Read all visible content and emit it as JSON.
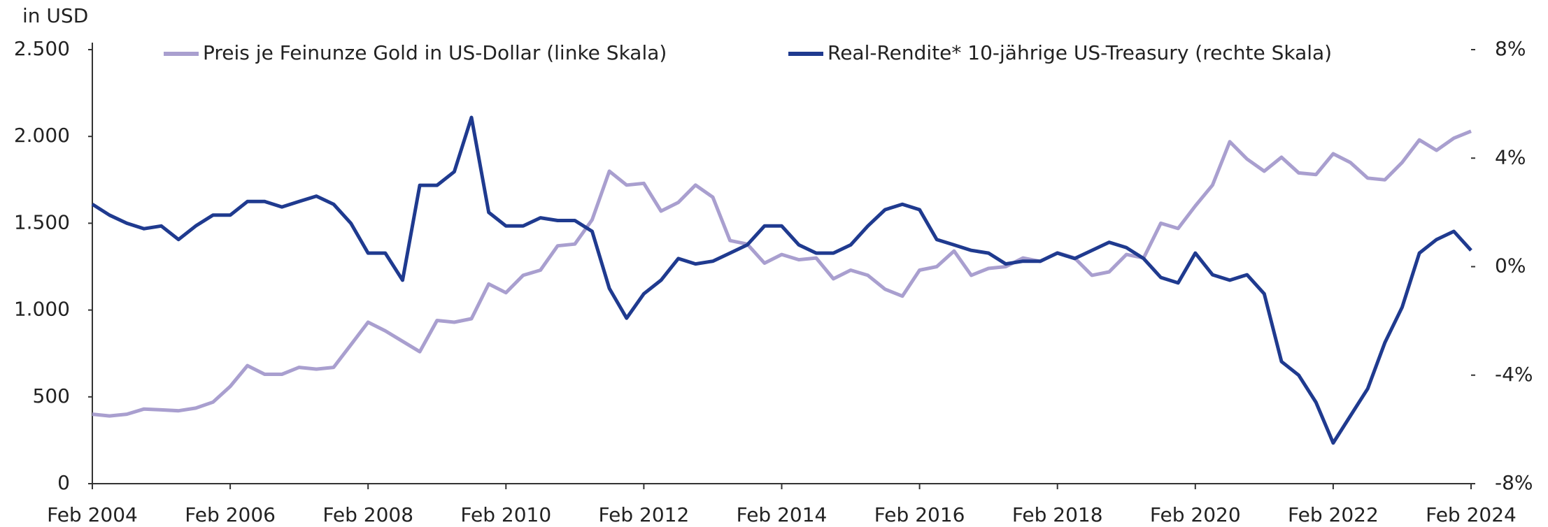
{
  "chart_data": {
    "type": "line",
    "y_axis_label": "in USD",
    "x": [
      "2004-02",
      "2004-05",
      "2004-08",
      "2004-11",
      "2005-02",
      "2005-05",
      "2005-08",
      "2005-11",
      "2006-02",
      "2006-05",
      "2006-08",
      "2006-11",
      "2007-02",
      "2007-05",
      "2007-08",
      "2007-11",
      "2008-02",
      "2008-05",
      "2008-08",
      "2008-11",
      "2009-02",
      "2009-05",
      "2009-08",
      "2009-11",
      "2010-02",
      "2010-05",
      "2010-08",
      "2010-11",
      "2011-02",
      "2011-05",
      "2011-08",
      "2011-11",
      "2012-02",
      "2012-05",
      "2012-08",
      "2012-11",
      "2013-02",
      "2013-05",
      "2013-08",
      "2013-11",
      "2014-02",
      "2014-05",
      "2014-08",
      "2014-11",
      "2015-02",
      "2015-05",
      "2015-08",
      "2015-11",
      "2016-02",
      "2016-05",
      "2016-08",
      "2016-11",
      "2017-02",
      "2017-05",
      "2017-08",
      "2017-11",
      "2018-02",
      "2018-05",
      "2018-08",
      "2018-11",
      "2019-02",
      "2019-05",
      "2019-08",
      "2019-11",
      "2020-02",
      "2020-05",
      "2020-08",
      "2020-11",
      "2021-02",
      "2021-05",
      "2021-08",
      "2021-11",
      "2022-02",
      "2022-05",
      "2022-08",
      "2022-11",
      "2023-02",
      "2023-05",
      "2023-08",
      "2023-11",
      "2024-02"
    ],
    "series": [
      {
        "name": "Preis je Feinunze Gold in US-Dollar (linke Skala)",
        "color": "#a99fcf",
        "axis": "y",
        "values": [
          400,
          390,
          400,
          430,
          425,
          420,
          435,
          470,
          560,
          680,
          630,
          630,
          670,
          660,
          670,
          800,
          930,
          880,
          820,
          760,
          940,
          930,
          950,
          1150,
          1100,
          1200,
          1230,
          1370,
          1380,
          1520,
          1800,
          1720,
          1730,
          1570,
          1620,
          1720,
          1650,
          1400,
          1380,
          1270,
          1320,
          1290,
          1300,
          1180,
          1230,
          1200,
          1120,
          1080,
          1230,
          1250,
          1340,
          1200,
          1240,
          1250,
          1300,
          1280,
          1330,
          1300,
          1200,
          1220,
          1320,
          1300,
          1500,
          1470,
          1600,
          1720,
          1970,
          1870,
          1800,
          1880,
          1790,
          1780,
          1900,
          1850,
          1760,
          1750,
          1850,
          1980,
          1920,
          1990,
          2030
        ]
      },
      {
        "name": "Real-Rendite* 10-jährige US-Treasury (rechte Skala)",
        "color": "#1f3a8f",
        "axis": "y2",
        "values": [
          2.3,
          1.9,
          1.6,
          1.4,
          1.5,
          1.0,
          1.5,
          1.9,
          1.9,
          2.4,
          2.4,
          2.2,
          2.4,
          2.6,
          2.3,
          1.6,
          0.5,
          0.5,
          -0.5,
          3.0,
          3.0,
          3.5,
          5.5,
          2.0,
          1.5,
          1.5,
          1.8,
          1.7,
          1.7,
          1.3,
          -0.8,
          -1.9,
          -1.0,
          -0.5,
          0.3,
          0.1,
          0.2,
          0.5,
          0.8,
          1.5,
          1.5,
          0.8,
          0.5,
          0.5,
          0.8,
          1.5,
          2.1,
          2.3,
          2.1,
          1.0,
          0.8,
          0.6,
          0.5,
          0.1,
          0.2,
          0.2,
          0.5,
          0.3,
          0.6,
          0.9,
          0.7,
          0.3,
          -0.4,
          -0.6,
          0.5,
          -0.3,
          -0.5,
          -0.3,
          -1.0,
          -3.5,
          -4.0,
          -5.0,
          -6.5,
          -5.5,
          -4.5,
          -2.8,
          -1.5,
          0.5,
          1.0,
          1.3,
          0.6
        ]
      }
    ],
    "xlim": [
      "2004-02",
      "2024-02"
    ],
    "xticks": [
      {
        "value": "2004-02",
        "label": "Feb 2004"
      },
      {
        "value": "2006-02",
        "label": "Feb 2006"
      },
      {
        "value": "2008-02",
        "label": "Feb 2008"
      },
      {
        "value": "2010-02",
        "label": "Feb 2010"
      },
      {
        "value": "2012-02",
        "label": "Feb 2012"
      },
      {
        "value": "2014-02",
        "label": "Feb 2014"
      },
      {
        "value": "2016-02",
        "label": "Feb 2016"
      },
      {
        "value": "2018-02",
        "label": "Feb 2018"
      },
      {
        "value": "2020-02",
        "label": "Feb 2020"
      },
      {
        "value": "2022-02",
        "label": "Feb 2022"
      },
      {
        "value": "2024-02",
        "label": "Feb 2024"
      }
    ],
    "ylim": [
      0,
      2500
    ],
    "yticks": [
      0,
      500,
      {
        "value": 1000,
        "label": "1.000"
      },
      {
        "value": 1500,
        "label": "1.500"
      },
      {
        "value": 2000,
        "label": "2.000"
      },
      {
        "value": 2500,
        "label": "2.500"
      }
    ],
    "y2lim": [
      -8,
      8
    ],
    "y2ticks": [
      {
        "value": -8,
        "label": "-8%"
      },
      {
        "value": -4,
        "label": "-4%"
      },
      {
        "value": 0,
        "label": "0%"
      },
      {
        "value": 4,
        "label": "4%"
      },
      {
        "value": 8,
        "label": "8%"
      }
    ],
    "legend": "top",
    "grid": false
  }
}
